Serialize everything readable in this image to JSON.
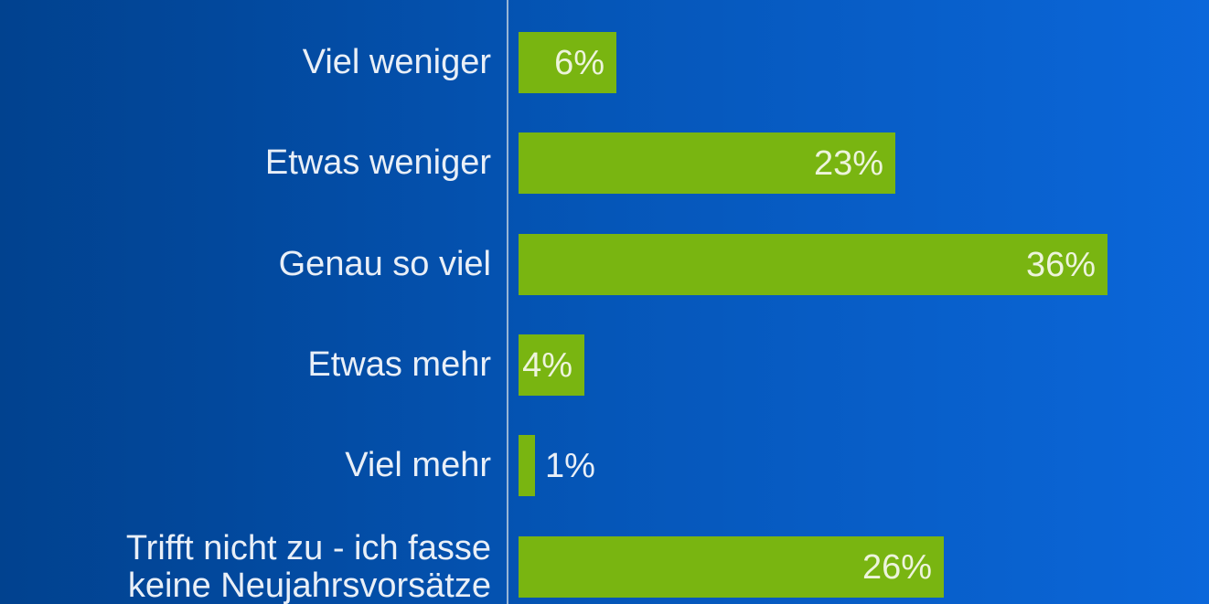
{
  "chart_data": {
    "type": "bar",
    "orientation": "horizontal",
    "title": "",
    "xlabel": "",
    "ylabel": "",
    "grid": false,
    "legend": false,
    "categories": [
      "Viel weniger",
      "Etwas weniger",
      "Genau so viel",
      "Etwas mehr",
      "Viel mehr",
      "Trifft nicht zu - ich fasse\nkeine Neujahrsvorsätze"
    ],
    "values": [
      6,
      23,
      36,
      4,
      1,
      26
    ],
    "value_labels": [
      "6%",
      "23%",
      "36%",
      "4%",
      "1%",
      "26%"
    ],
    "xlim": [
      0,
      40
    ],
    "colors": {
      "bar": "#79B511",
      "background_gradient_left": "#01428F",
      "background_gradient_right": "#0B67DA",
      "category_text": "#E9EFF7",
      "value_text": "#EDF4DC",
      "axis_line": "#A9C0D9"
    }
  }
}
